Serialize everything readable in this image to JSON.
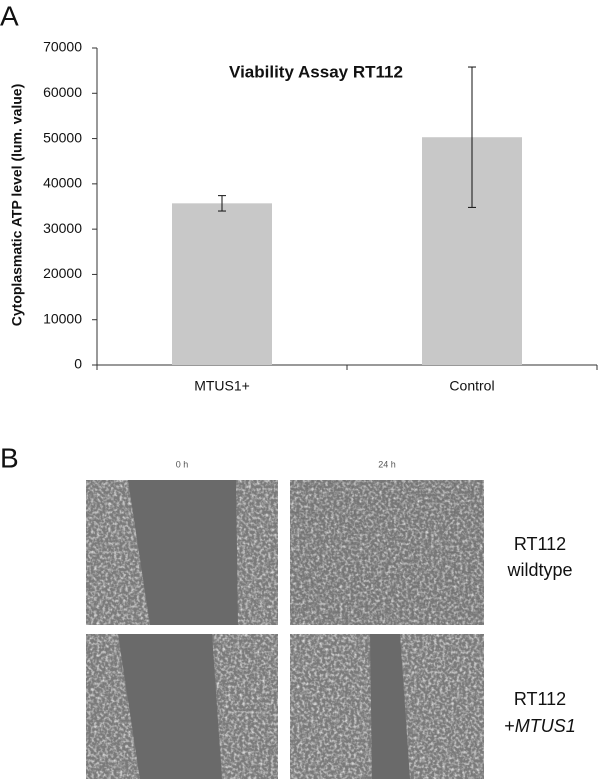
{
  "panel_a_label": "A",
  "chart_data": {
    "type": "bar",
    "title": "Viability Assay RT112",
    "y_label": "Cytoplasmatic ATP level (lum. value)",
    "categories": [
      "MTUS1+",
      "Control"
    ],
    "values": [
      35700,
      50300
    ],
    "errors": [
      1700,
      15500
    ],
    "color": "#c8c8c8",
    "ylim": [
      0,
      70000
    ],
    "yticks": [
      0,
      10000,
      20000,
      30000,
      40000,
      50000,
      60000,
      70000
    ],
    "grid": false
  },
  "panel_b": {
    "label": "B",
    "columns": [
      "0 h",
      "24 h"
    ],
    "rows": [
      {
        "line1": "RT112",
        "line2": "wildtype"
      },
      {
        "line1": "RT112",
        "prefix": "+",
        "gene": "MTUS1"
      }
    ]
  }
}
